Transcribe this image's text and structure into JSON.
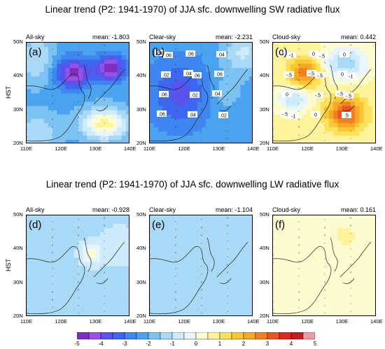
{
  "titles": {
    "sw": "Linear trend (P2: 1941-1970) of JJA sfc. downwelling SW radiative flux",
    "lw": "Linear trend (P2: 1941-1970) of JJA sfc. downwelling LW radiative flux"
  },
  "ylabel": "HST",
  "chart_data": [
    {
      "type": "heatmap",
      "panel": "(a)",
      "label": "All-sky",
      "mean_text": "mean: -1.803",
      "mean": -1.803,
      "x_ticks": [
        "110E",
        "120E",
        "130E",
        "140E"
      ],
      "y_ticks": [
        "20N",
        "30N",
        "40N",
        "50N"
      ],
      "xlim": [
        110,
        140
      ],
      "ylim": [
        20,
        50
      ]
    },
    {
      "type": "heatmap",
      "panel": "(b)",
      "label": "Clear-sky",
      "mean_text": "mean: -2.231",
      "mean": -2.231,
      "x_ticks": [
        "110E",
        "120E",
        "130E",
        "140E"
      ],
      "y_ticks": [
        "20N",
        "30N",
        "40N",
        "50N"
      ],
      "xlim": [
        110,
        140
      ],
      "ylim": [
        20,
        50
      ],
      "contour_labels": [
        ".04",
        ".04",
        ".04",
        ".06",
        ".06",
        ".06",
        ".06",
        ".04",
        ".04",
        ".02",
        ".02",
        ".02",
        ".06",
        ".06"
      ]
    },
    {
      "type": "heatmap",
      "panel": "(c)",
      "label": "Cloud-sky",
      "mean_text": "mean: 0.442",
      "mean": 0.442,
      "x_ticks": [
        "110E",
        "120E",
        "130E",
        "140E"
      ],
      "y_ticks": [
        "20N",
        "30N",
        "40N",
        "50N"
      ],
      "xlim": [
        110,
        140
      ],
      "ylim": [
        20,
        50
      ],
      "contour_labels": [
        "1",
        "-.5",
        "-.5",
        "-.5",
        "0",
        "0",
        "0",
        "0",
        "0",
        "-.5",
        "-.5",
        ".5",
        "-1",
        "-.5",
        "-.5",
        "-1",
        "-.5",
        "-1"
      ]
    },
    {
      "type": "heatmap",
      "panel": "(d)",
      "label": "All-sky",
      "mean_text": "mean: -0.928",
      "mean": -0.928,
      "x_ticks": [
        "110E",
        "120E",
        "130E",
        "140E"
      ],
      "y_ticks": [
        "20N",
        "30N",
        "40N",
        "50N"
      ],
      "xlim": [
        110,
        140
      ],
      "ylim": [
        20,
        50
      ]
    },
    {
      "type": "heatmap",
      "panel": "(e)",
      "label": "Clear-sky",
      "mean_text": "mean: -1.104",
      "mean": -1.104,
      "x_ticks": [
        "110E",
        "120E",
        "130E",
        "140E"
      ],
      "y_ticks": [
        "20N",
        "30N",
        "40N",
        "50N"
      ],
      "xlim": [
        110,
        140
      ],
      "ylim": [
        20,
        50
      ]
    },
    {
      "type": "heatmap",
      "panel": "(f)",
      "label": "Cloud-sky",
      "mean_text": "mean: 0.161",
      "mean": 0.161,
      "x_ticks": [
        "110E",
        "120E",
        "130E",
        "140E"
      ],
      "y_ticks": [
        "20N",
        "30N",
        "40N",
        "50N"
      ],
      "xlim": [
        110,
        140
      ],
      "ylim": [
        20,
        50
      ]
    }
  ],
  "colorbar": {
    "labels": [
      "-5",
      "-4",
      "-3",
      "-2",
      "-1",
      "0",
      "1",
      "2",
      "3",
      "4",
      "5"
    ],
    "colors": [
      "#7e2fbf",
      "#9a4fe6",
      "#5b52ec",
      "#3e66ee",
      "#3f86f1",
      "#4aa3ee",
      "#7cc2f2",
      "#a8d9f6",
      "#cdebfb",
      "#e8f6fc",
      "#fdfbd0",
      "#fdf39a",
      "#fde15c",
      "#fbc633",
      "#f7a626",
      "#f27f20",
      "#ea5520",
      "#dc2a22",
      "#c51d1f",
      "#f09aa6"
    ]
  }
}
